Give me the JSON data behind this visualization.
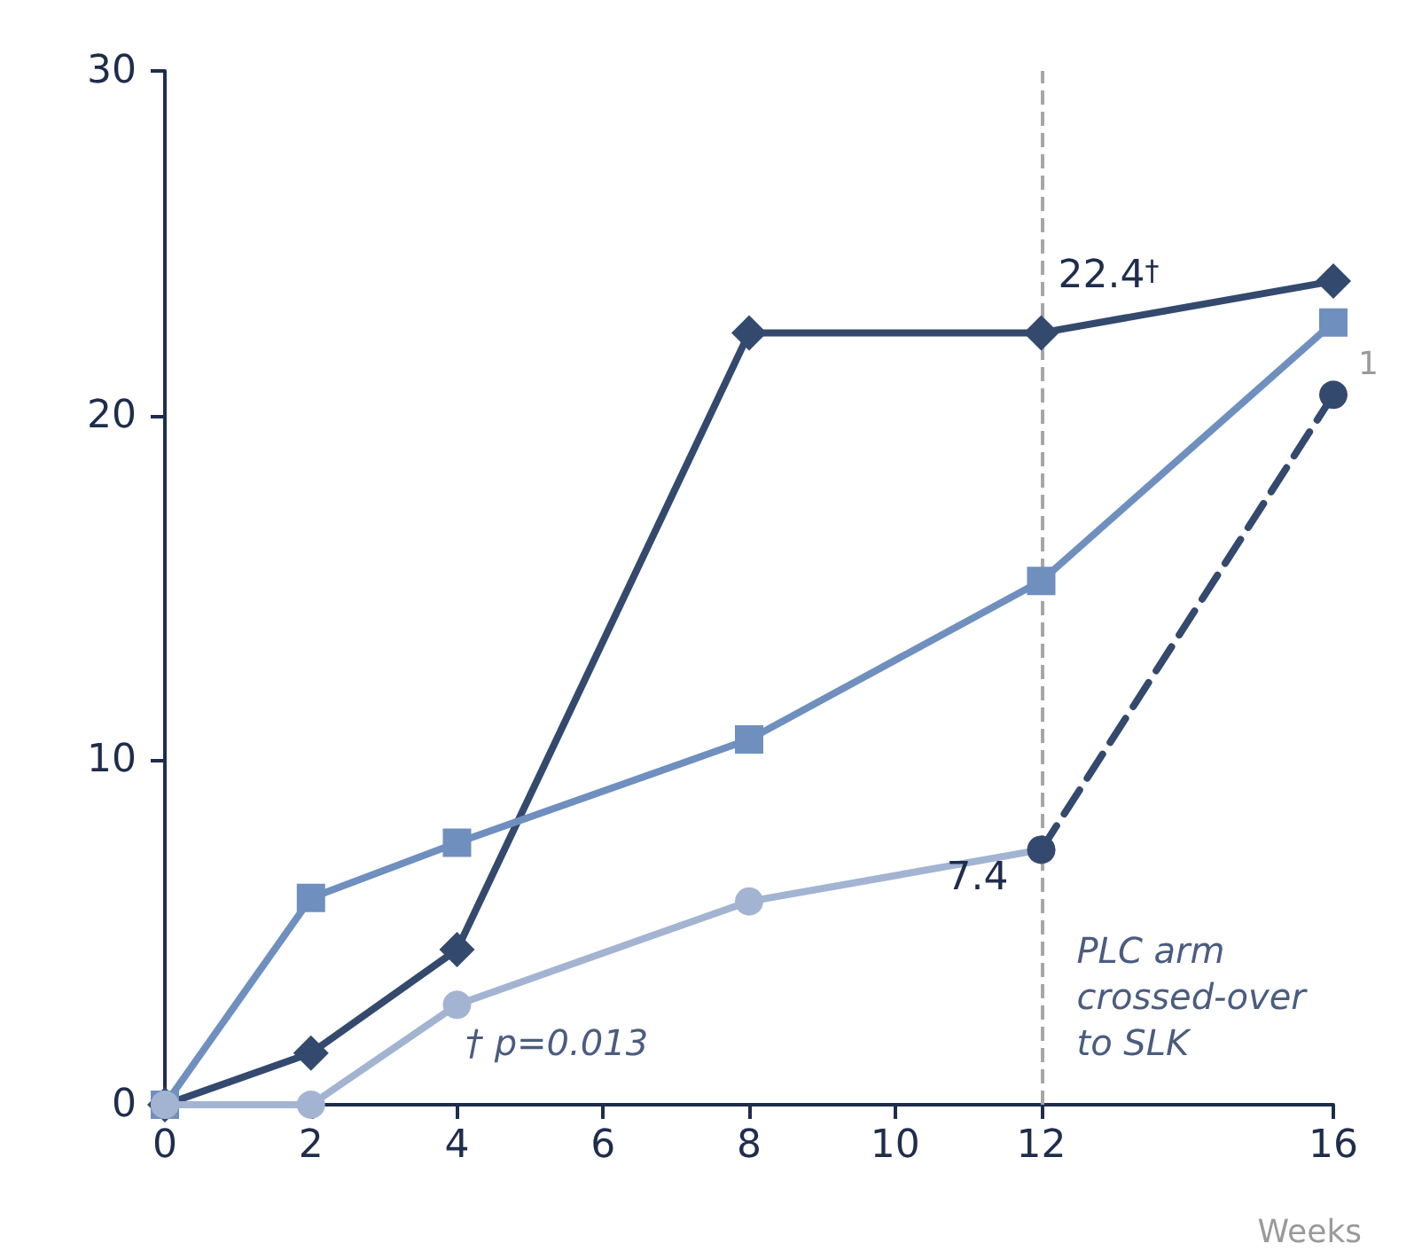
{
  "chart_data": {
    "type": "line",
    "xlabel": "Weeks",
    "xlim": [
      0,
      16
    ],
    "xticks": [
      0,
      2,
      4,
      6,
      8,
      10,
      12,
      16
    ],
    "ylim": [
      0,
      30
    ],
    "yticks": [
      0,
      10,
      20,
      30
    ],
    "grid": false,
    "series": [
      {
        "color": "#34496e",
        "marker": "diamond",
        "line_style": "solid",
        "x": [
          0,
          2,
          4,
          8,
          12,
          16
        ],
        "values": [
          0,
          1.5,
          4.5,
          22.4,
          22.4,
          23.9
        ],
        "value_labels": [
          null,
          null,
          null,
          null,
          "22.4$^{†}$",
          null
        ]
      },
      {
        "color": "#6f8fbf",
        "marker": "square",
        "line_style": "solid",
        "x": [
          0,
          2,
          4,
          8,
          12,
          16
        ],
        "values": [
          0,
          6.0,
          7.6,
          10.6,
          15.2,
          22.7
        ]
      },
      {
        "color": "#a3b4d2",
        "marker": "circle",
        "line_style": "solid",
        "x": [
          0,
          2,
          4,
          8,
          12
        ],
        "values": [
          0,
          0,
          2.9,
          5.9,
          7.4
        ]
      },
      {
        "color": "#34496e",
        "marker": "circle",
        "line_style": "dashed",
        "x": [
          12,
          16
        ],
        "values": [
          7.4,
          20.6
        ],
        "value_labels": [
          "7.4",
          null
        ]
      }
    ],
    "ref_lines": [
      {
        "axis": "x",
        "value": 12,
        "label": "PLC arm crossed-over to SLK",
        "color": "#a6a6a6",
        "line_style": "dashed"
      }
    ],
    "annotations": [
      {
        "text": "1",
        "x": 16,
        "y": 20.6
      },
      "† p=0.013"
    ]
  }
}
